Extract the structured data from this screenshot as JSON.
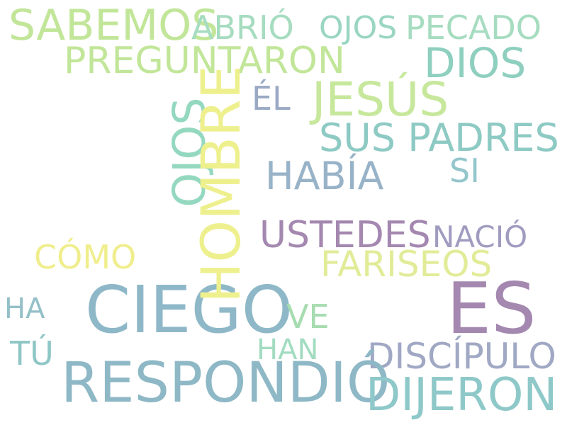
{
  "words": [
    {
      "text": "SABEMOS",
      "color": "#c2e699"
    },
    {
      "text": "ABRIÓ",
      "color": "#a6dcc0"
    },
    {
      "text": "OJOS",
      "color": "#9ad6c2"
    },
    {
      "text": "PECADO",
      "color": "#a6dcc0"
    },
    {
      "text": "PREGUNTARON",
      "color": "#c2e699"
    },
    {
      "text": "DIOS",
      "color": "#8ecfbf"
    },
    {
      "text": "JESÚS",
      "color": "#c7e89c"
    },
    {
      "text": "ÉL",
      "color": "#9aa9c4"
    },
    {
      "text": "SUS PADRES",
      "color": "#8ecac4"
    },
    {
      "text": "HABÍA",
      "color": "#98b3c8"
    },
    {
      "text": "SI",
      "color": "#94c6cc"
    },
    {
      "text": "USTEDES",
      "color": "#a488b0"
    },
    {
      "text": "NACIÓ",
      "color": "#a09cc0"
    },
    {
      "text": "CÓMO",
      "color": "#f0ee8c"
    },
    {
      "text": "FARISEOS",
      "color": "#e2ec98"
    },
    {
      "text": "CIEGO",
      "color": "#8eb8c8"
    },
    {
      "text": "ES",
      "color": "#a488b0"
    },
    {
      "text": "HA",
      "color": "#94c0c8"
    },
    {
      "text": "VE",
      "color": "#a6dcb0"
    },
    {
      "text": "TÚ",
      "color": "#8ec6c6"
    },
    {
      "text": "HAN",
      "color": "#a2dcc0"
    },
    {
      "text": "DISCÍPULO",
      "color": "#a0a8c4"
    },
    {
      "text": "RESPONDIÓ",
      "color": "#8eb8c6"
    },
    {
      "text": "DIJERON",
      "color": "#8ec8c8"
    },
    {
      "text": "OJOS",
      "color": "#94d8c0"
    },
    {
      "text": "HOMBRE",
      "color": "#eef08e"
    }
  ]
}
